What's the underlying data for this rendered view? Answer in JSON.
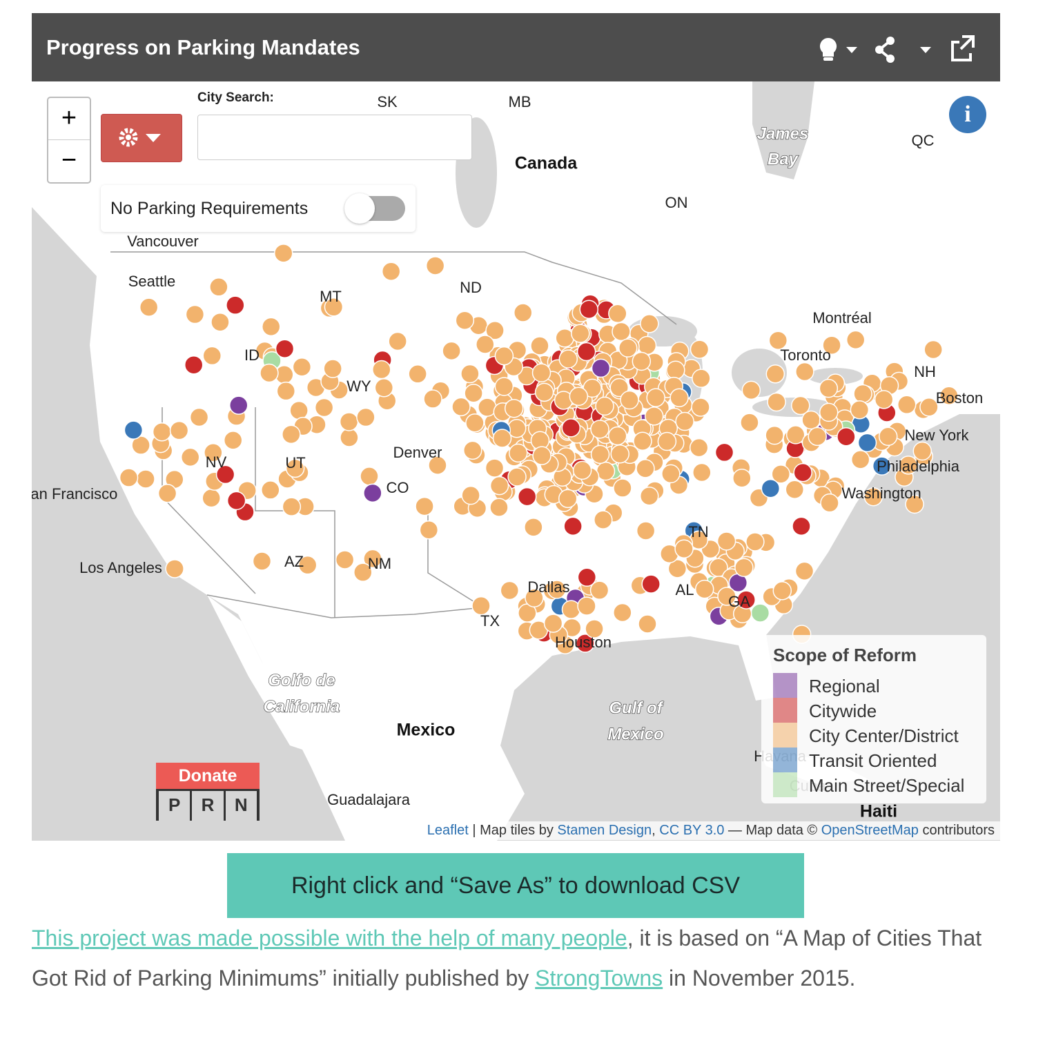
{
  "header": {
    "title": "Progress on Parking Mandates"
  },
  "map_controls": {
    "zoom_in": "+",
    "zoom_out": "−",
    "city_search_label": "City Search:",
    "toggle_label": "No Parking Requirements",
    "info": "i"
  },
  "map_labels": [
    "SK",
    "MB",
    "Canada",
    "James",
    "Bay",
    "QC",
    "ON",
    "Montréal",
    "Toronto",
    "NH",
    "Boston",
    "New York",
    "Philadelphia",
    "Washington",
    "Vancouver",
    "Seattle",
    "MT",
    "ND",
    "ID",
    "WY",
    "NV",
    "UT",
    "Denver",
    "CO",
    "San Francisco",
    "AZ",
    "NM",
    "Los Angeles",
    "TX",
    "Dallas",
    "Houston",
    "TN",
    "AL",
    "GA",
    "Golfo de",
    "California",
    "Gulf of",
    "Mexico",
    "Mexico",
    "Guadalajara",
    "Havana",
    "Cuba",
    "Haiti"
  ],
  "legend": {
    "title": "Scope of Reform",
    "items": [
      {
        "label": "Regional",
        "color": "#7b3f9e"
      },
      {
        "label": "Citywide",
        "color": "#cc2a2a"
      },
      {
        "label": "City Center/District",
        "color": "#f2b36d"
      },
      {
        "label": "Transit Oriented",
        "color": "#3a78b8"
      },
      {
        "label": "Main Street/Special",
        "color": "#a9dca3"
      }
    ]
  },
  "attribution": [
    "Leaflet",
    " | Map tiles by ",
    "Stamen Design",
    ", ",
    "CC BY 3.0",
    " — Map data © ",
    "OpenStreetMap",
    " contributors"
  ],
  "donate": {
    "label": "Donate",
    "letters": [
      "P",
      "R",
      "N"
    ]
  },
  "download_button": "Right click and “Save As” to download CSV",
  "paragraph": [
    "This project was made possible with the help of many people",
    ", it is based on “A Map of Cities That Got Rid of Parking Minimums” initially published by ",
    "StrongTowns",
    " in November 2015."
  ]
}
